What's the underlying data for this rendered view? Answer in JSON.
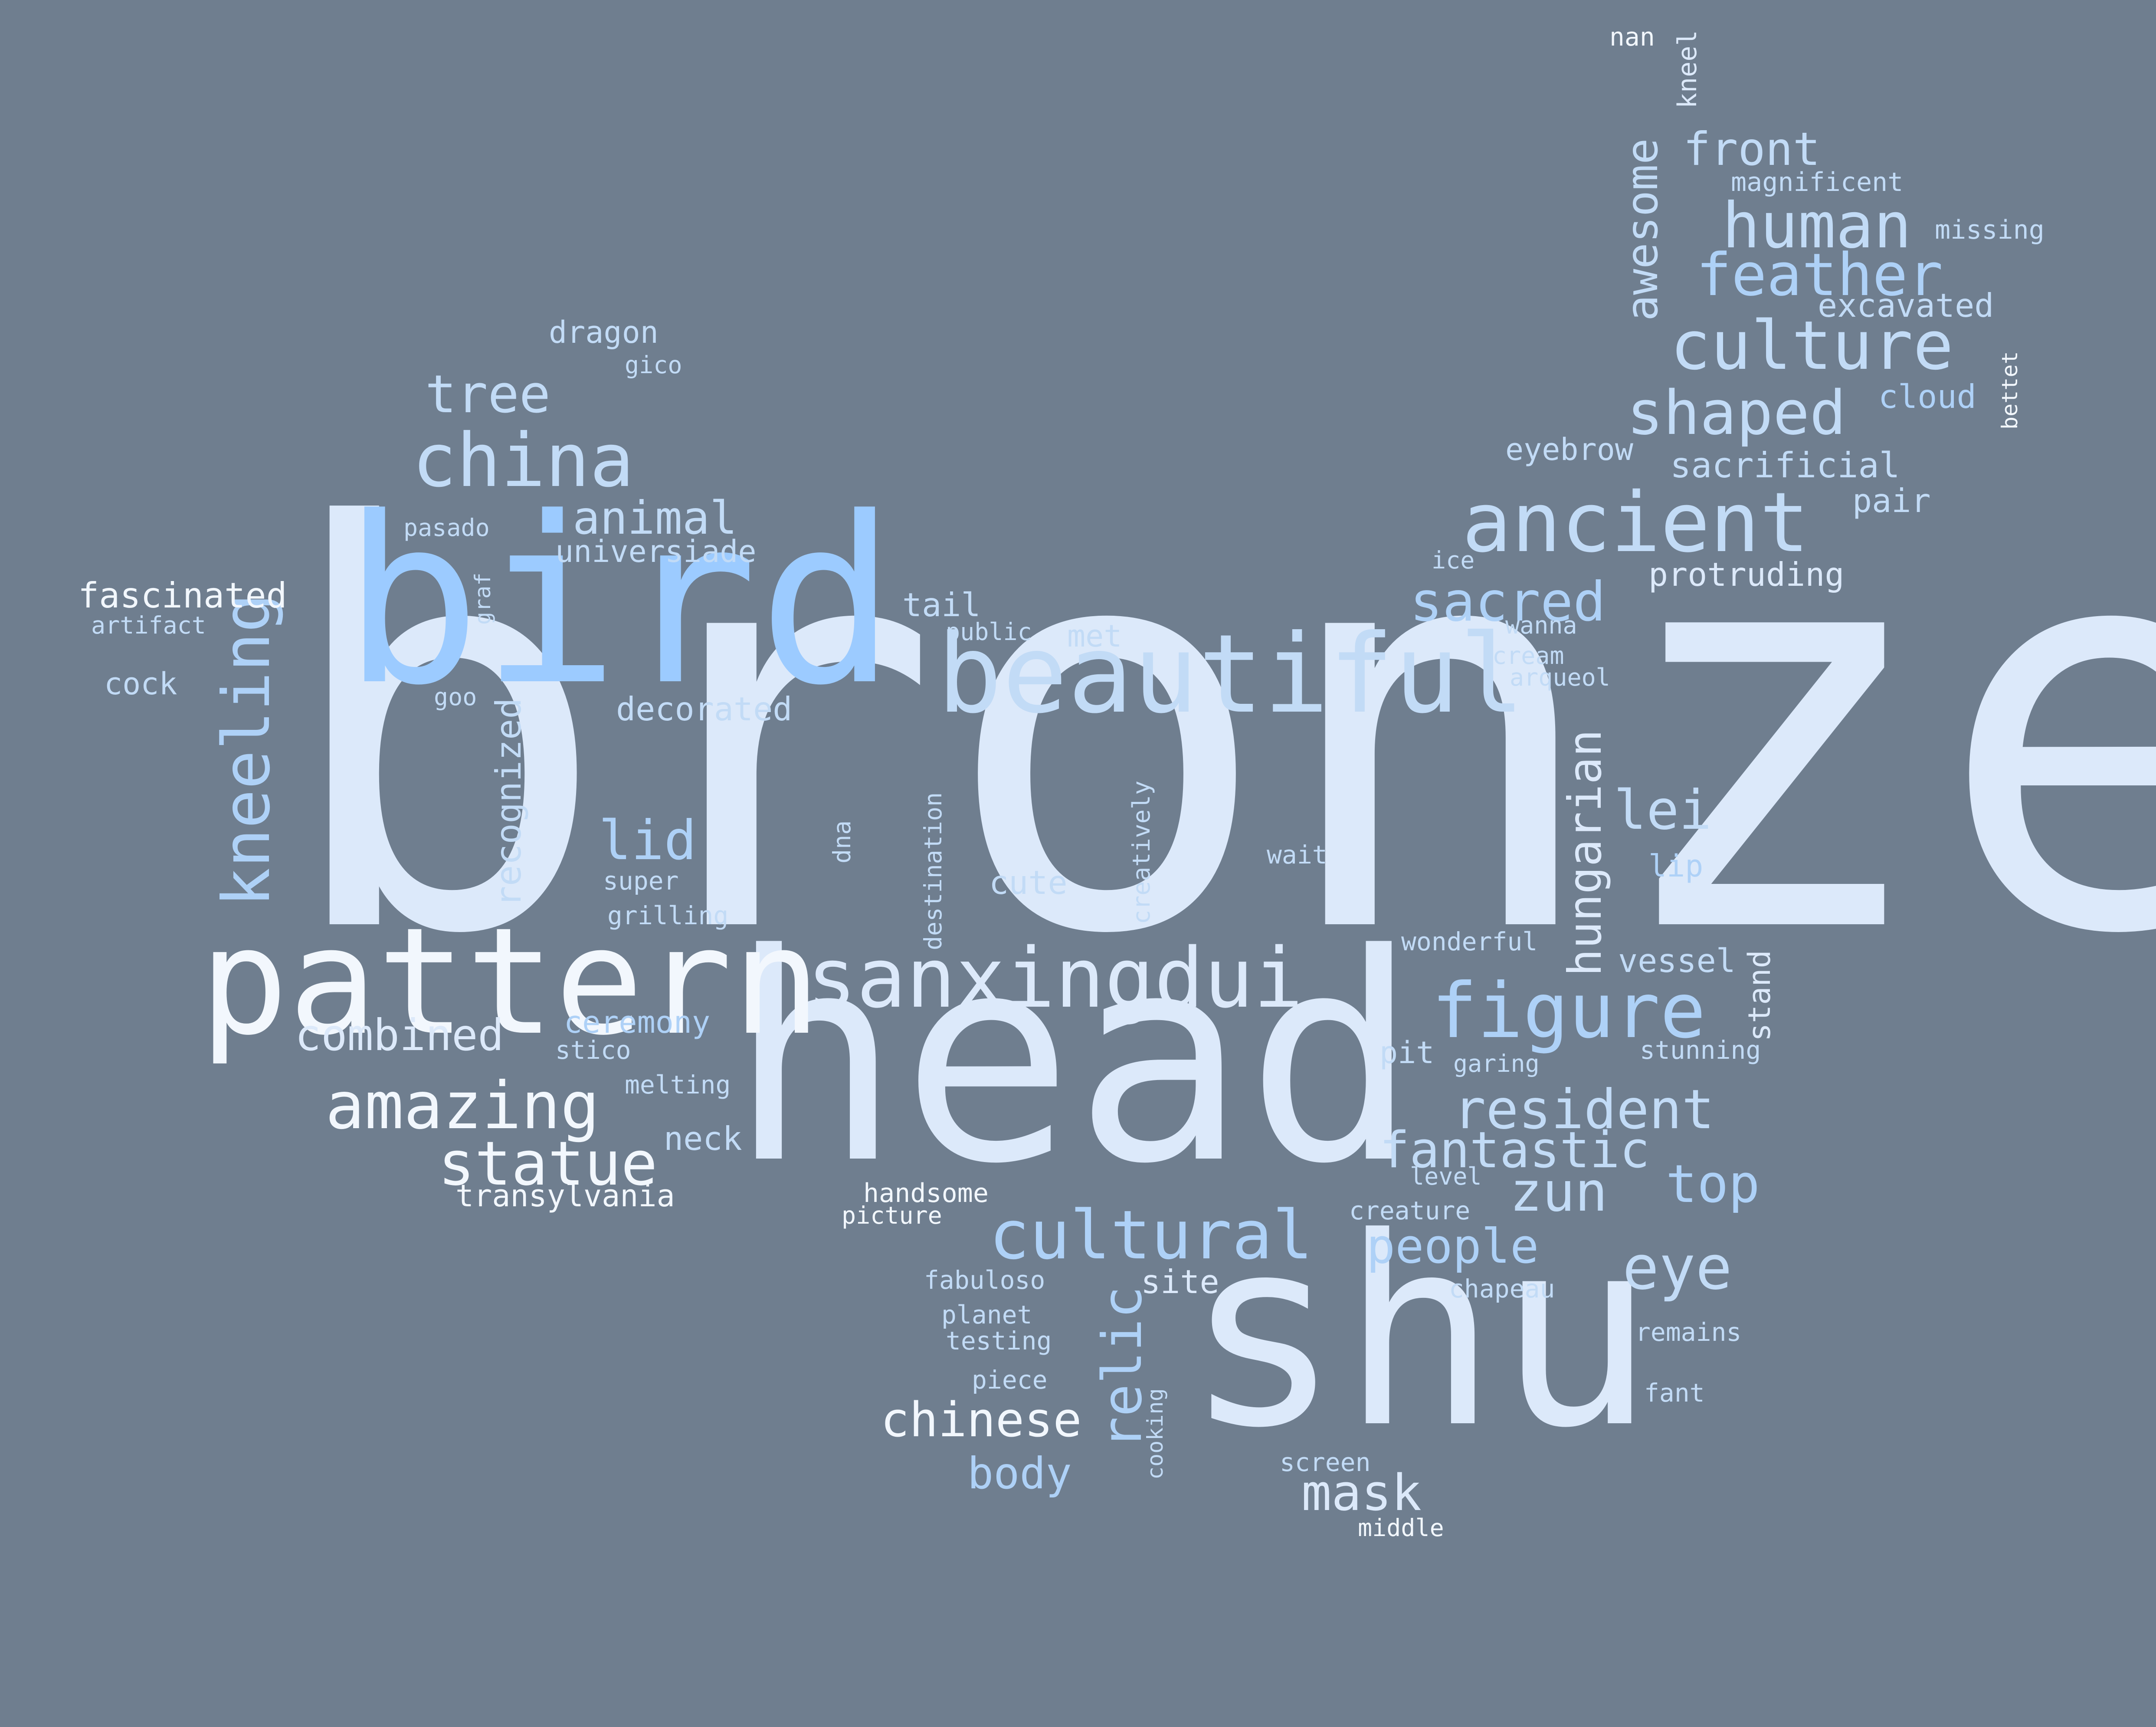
{
  "background_color": "#6f7e8f",
  "palette": {
    "white": "#f2f7fd",
    "pale": "#dce9fa",
    "light": "#c2dbf6",
    "mid": "#aed1f7",
    "bright": "#9ccbff"
  },
  "words": [
    {
      "text": "bronze",
      "weight": 1.0,
      "color": "pale",
      "vertical": false
    },
    {
      "text": "head",
      "weight": 0.84,
      "color": "pale",
      "vertical": false
    },
    {
      "text": "shu",
      "weight": 0.75,
      "color": "pale",
      "vertical": false
    },
    {
      "text": "bird",
      "weight": 0.72,
      "color": "bright",
      "vertical": false
    },
    {
      "text": "pattern",
      "weight": 0.47,
      "color": "white",
      "vertical": false
    },
    {
      "text": "beautiful",
      "weight": 0.35,
      "color": "light",
      "vertical": false
    },
    {
      "text": "sanxingdui",
      "weight": 0.26,
      "color": "pale",
      "vertical": false
    },
    {
      "text": "ancient",
      "weight": 0.27,
      "color": "light",
      "vertical": false
    },
    {
      "text": "china",
      "weight": 0.24,
      "color": "light",
      "vertical": false
    },
    {
      "text": "figure",
      "weight": 0.23,
      "color": "mid",
      "vertical": false
    },
    {
      "text": "culture",
      "weight": 0.21,
      "color": "light",
      "vertical": false
    },
    {
      "text": "cultural",
      "weight": 0.21,
      "color": "mid",
      "vertical": false
    },
    {
      "text": "amazing",
      "weight": 0.2,
      "color": "white",
      "vertical": false
    },
    {
      "text": "statue",
      "weight": 0.19,
      "color": "white",
      "vertical": false
    },
    {
      "text": "human",
      "weight": 0.2,
      "color": "light",
      "vertical": false
    },
    {
      "text": "shaped",
      "weight": 0.19,
      "color": "light",
      "vertical": false
    },
    {
      "text": "feather",
      "weight": 0.18,
      "color": "mid",
      "vertical": false
    },
    {
      "text": "kneeling",
      "weight": 0.2,
      "color": "mid",
      "vertical": true
    },
    {
      "text": "relic",
      "weight": 0.17,
      "color": "mid",
      "vertical": true
    },
    {
      "text": "resident",
      "weight": 0.17,
      "color": "light",
      "vertical": false
    },
    {
      "text": "eye",
      "weight": 0.18,
      "color": "light",
      "vertical": false
    },
    {
      "text": "sacred",
      "weight": 0.17,
      "color": "mid",
      "vertical": false
    },
    {
      "text": "lid",
      "weight": 0.17,
      "color": "mid",
      "vertical": false
    },
    {
      "text": "fantastic",
      "weight": 0.16,
      "color": "light",
      "vertical": false
    },
    {
      "text": "zun",
      "weight": 0.16,
      "color": "light",
      "vertical": false
    },
    {
      "text": "top",
      "weight": 0.16,
      "color": "mid",
      "vertical": false
    },
    {
      "text": "tree",
      "weight": 0.16,
      "color": "light",
      "vertical": false
    },
    {
      "text": "people",
      "weight": 0.14,
      "color": "mid",
      "vertical": false
    },
    {
      "text": "lei",
      "weight": 0.16,
      "color": "light",
      "vertical": false
    },
    {
      "text": "mask",
      "weight": 0.15,
      "color": "pale",
      "vertical": false
    },
    {
      "text": "chinese",
      "weight": 0.14,
      "color": "white",
      "vertical": false
    },
    {
      "text": "hungarian",
      "weight": 0.14,
      "color": "pale",
      "vertical": true
    },
    {
      "text": "awesome",
      "weight": 0.13,
      "color": "light",
      "vertical": true
    },
    {
      "text": "front",
      "weight": 0.13,
      "color": "light",
      "vertical": false
    },
    {
      "text": "animal",
      "weight": 0.13,
      "color": "light",
      "vertical": false
    },
    {
      "text": "combined",
      "weight": 0.12,
      "color": "pale",
      "vertical": false
    },
    {
      "text": "body",
      "weight": 0.12,
      "color": "mid",
      "vertical": false
    },
    {
      "text": "recognized",
      "weight": 0.09,
      "color": "light",
      "vertical": true
    },
    {
      "text": "fascinated",
      "weight": 0.11,
      "color": "white",
      "vertical": false
    },
    {
      "text": "cute",
      "weight": 0.1,
      "color": "light",
      "vertical": false
    },
    {
      "text": "sacrificial",
      "weight": 0.1,
      "color": "light",
      "vertical": false
    },
    {
      "text": "protruding",
      "weight": 0.09,
      "color": "pale",
      "vertical": false
    },
    {
      "text": "decorated",
      "weight": 0.09,
      "color": "light",
      "vertical": false
    },
    {
      "text": "neck",
      "weight": 0.09,
      "color": "light",
      "vertical": false
    },
    {
      "text": "vessel",
      "weight": 0.09,
      "color": "light",
      "vertical": false
    },
    {
      "text": "excavated",
      "weight": 0.09,
      "color": "light",
      "vertical": false
    },
    {
      "text": "tail",
      "weight": 0.09,
      "color": "light",
      "vertical": false
    },
    {
      "text": "stand",
      "weight": 0.08,
      "color": "pale",
      "vertical": true
    },
    {
      "text": "site",
      "weight": 0.09,
      "color": "pale",
      "vertical": false
    },
    {
      "text": "cloud",
      "weight": 0.09,
      "color": "mid",
      "vertical": false
    },
    {
      "text": "pair",
      "weight": 0.09,
      "color": "light",
      "vertical": false
    },
    {
      "text": "eyebrow",
      "weight": 0.08,
      "color": "light",
      "vertical": false
    },
    {
      "text": "lip",
      "weight": 0.08,
      "color": "mid",
      "vertical": false
    },
    {
      "text": "met",
      "weight": 0.08,
      "color": "light",
      "vertical": false
    },
    {
      "text": "cock",
      "weight": 0.08,
      "color": "light",
      "vertical": false
    },
    {
      "text": "universiade",
      "weight": 0.08,
      "color": "light",
      "vertical": false
    },
    {
      "text": "dragon",
      "weight": 0.08,
      "color": "light",
      "vertical": false
    },
    {
      "text": "ceremony",
      "weight": 0.08,
      "color": "mid",
      "vertical": false
    },
    {
      "text": "transylvania",
      "weight": 0.08,
      "color": "white",
      "vertical": false
    },
    {
      "text": "pit",
      "weight": 0.08,
      "color": "light",
      "vertical": false
    },
    {
      "text": "kneel",
      "weight": 0.06,
      "color": "pale",
      "vertical": true
    },
    {
      "text": "destination",
      "weight": 0.06,
      "color": "light",
      "vertical": true
    },
    {
      "text": "creatively",
      "weight": 0.06,
      "color": "light",
      "vertical": true
    },
    {
      "text": "handsome",
      "weight": 0.07,
      "color": "white",
      "vertical": false
    },
    {
      "text": "magnificent",
      "weight": 0.07,
      "color": "light",
      "vertical": false
    },
    {
      "text": "missing",
      "weight": 0.07,
      "color": "light",
      "vertical": false
    },
    {
      "text": "stunning",
      "weight": 0.07,
      "color": "light",
      "vertical": false
    },
    {
      "text": "wonderful",
      "weight": 0.07,
      "color": "light",
      "vertical": false
    },
    {
      "text": "creature",
      "weight": 0.07,
      "color": "light",
      "vertical": false
    },
    {
      "text": "chapeau",
      "weight": 0.07,
      "color": "light",
      "vertical": false
    },
    {
      "text": "remains",
      "weight": 0.07,
      "color": "light",
      "vertical": false
    },
    {
      "text": "fabuloso",
      "weight": 0.07,
      "color": "light",
      "vertical": false
    },
    {
      "text": "grilling",
      "weight": 0.07,
      "color": "light",
      "vertical": false
    },
    {
      "text": "melting",
      "weight": 0.07,
      "color": "light",
      "vertical": false
    },
    {
      "text": "wait",
      "weight": 0.07,
      "color": "light",
      "vertical": false
    },
    {
      "text": "super",
      "weight": 0.07,
      "color": "light",
      "vertical": false
    },
    {
      "text": "fant",
      "weight": 0.07,
      "color": "light",
      "vertical": false
    },
    {
      "text": "piece",
      "weight": 0.07,
      "color": "light",
      "vertical": false
    },
    {
      "text": "planet",
      "weight": 0.07,
      "color": "light",
      "vertical": false
    },
    {
      "text": "testing",
      "weight": 0.07,
      "color": "light",
      "vertical": false
    },
    {
      "text": "screen",
      "weight": 0.07,
      "color": "light",
      "vertical": false
    },
    {
      "text": "middle",
      "weight": 0.07,
      "color": "white",
      "vertical": false
    },
    {
      "text": "picture",
      "weight": 0.07,
      "color": "white",
      "vertical": false
    },
    {
      "text": "stico",
      "weight": 0.07,
      "color": "light",
      "vertical": false
    },
    {
      "text": "garing",
      "weight": 0.07,
      "color": "light",
      "vertical": false
    },
    {
      "text": "ice",
      "weight": 0.06,
      "color": "light",
      "vertical": false
    },
    {
      "text": "level",
      "weight": 0.06,
      "color": "light",
      "vertical": false
    },
    {
      "text": "wanna",
      "weight": 0.06,
      "color": "light",
      "vertical": false
    },
    {
      "text": "cream",
      "weight": 0.06,
      "color": "light",
      "vertical": false
    },
    {
      "text": "arqueol",
      "weight": 0.06,
      "color": "light",
      "vertical": false
    },
    {
      "text": "public",
      "weight": 0.06,
      "color": "light",
      "vertical": false
    },
    {
      "text": "artifact",
      "weight": 0.06,
      "color": "light",
      "vertical": false
    },
    {
      "text": "pasado",
      "weight": 0.06,
      "color": "light",
      "vertical": false
    },
    {
      "text": "gico",
      "weight": 0.06,
      "color": "light",
      "vertical": false
    },
    {
      "text": "goo",
      "weight": 0.06,
      "color": "light",
      "vertical": false
    },
    {
      "text": "graf",
      "weight": 0.06,
      "color": "light",
      "vertical": true
    },
    {
      "text": "dna",
      "weight": 0.06,
      "color": "light",
      "vertical": true
    },
    {
      "text": "cooking",
      "weight": 0.06,
      "color": "light",
      "vertical": true
    },
    {
      "text": "bettet",
      "weight": 0.06,
      "color": "white",
      "vertical": true
    },
    {
      "text": "nan",
      "weight": 0.06,
      "color": "white",
      "vertical": false
    }
  ]
}
